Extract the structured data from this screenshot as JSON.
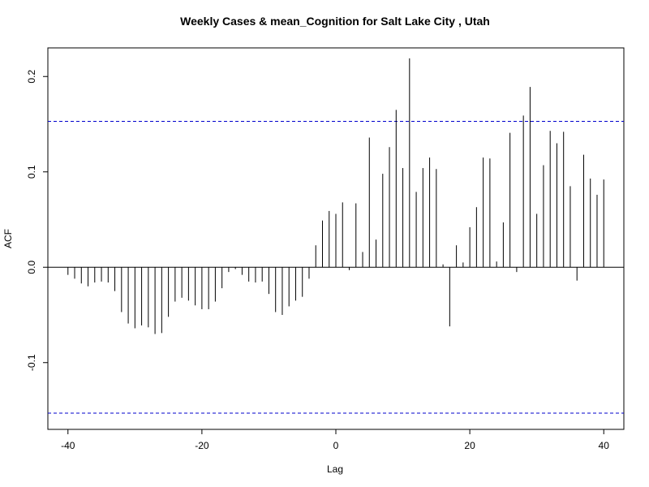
{
  "chart_data": {
    "type": "bar",
    "title": "Weekly Cases & mean_Cognition for Salt Lake City , Utah",
    "xlabel": "Lag",
    "ylabel": "ACF",
    "xlim": [
      -43,
      43
    ],
    "ylim": [
      -0.17,
      0.23
    ],
    "x_ticks": [
      -40,
      -20,
      0,
      20,
      40
    ],
    "x_tick_labels": [
      "-40",
      "-20",
      "0",
      "20",
      "40"
    ],
    "y_ticks": [
      -0.1,
      0.0,
      0.1,
      0.2
    ],
    "y_tick_labels": [
      "-0.1",
      "0.0",
      "0.1",
      "0.2"
    ],
    "confidence_bound": 0.153,
    "zero_line": true,
    "grid": false,
    "colors": {
      "bars": "#000000",
      "confidence_lines": "#0000cc",
      "frame": "#000000"
    },
    "lags": [
      -40,
      -39,
      -38,
      -37,
      -36,
      -35,
      -34,
      -33,
      -32,
      -31,
      -30,
      -29,
      -28,
      -27,
      -26,
      -25,
      -24,
      -23,
      -22,
      -21,
      -20,
      -19,
      -18,
      -17,
      -16,
      -15,
      -14,
      -13,
      -12,
      -11,
      -10,
      -9,
      -8,
      -7,
      -6,
      -5,
      -4,
      -3,
      -2,
      -1,
      0,
      1,
      2,
      3,
      4,
      5,
      6,
      7,
      8,
      9,
      10,
      11,
      12,
      13,
      14,
      15,
      16,
      17,
      18,
      19,
      20,
      21,
      22,
      23,
      24,
      25,
      26,
      27,
      28,
      29,
      30,
      31,
      32,
      33,
      34,
      35,
      36,
      37,
      38,
      39,
      40
    ],
    "values": [
      -0.008,
      -0.012,
      -0.017,
      -0.02,
      -0.016,
      -0.015,
      -0.016,
      -0.025,
      -0.047,
      -0.059,
      -0.064,
      -0.061,
      -0.063,
      -0.07,
      -0.069,
      -0.052,
      -0.036,
      -0.032,
      -0.035,
      -0.04,
      -0.044,
      -0.044,
      -0.036,
      -0.022,
      -0.005,
      -0.002,
      -0.008,
      -0.015,
      -0.016,
      -0.015,
      -0.028,
      -0.047,
      -0.05,
      -0.041,
      -0.035,
      -0.031,
      -0.012,
      0.023,
      0.049,
      0.059,
      0.056,
      0.068,
      -0.003,
      0.067,
      0.016,
      0.136,
      0.029,
      0.098,
      0.126,
      0.165,
      0.104,
      0.219,
      0.079,
      0.104,
      0.115,
      0.103,
      0.003,
      -0.062,
      0.023,
      0.005,
      0.042,
      0.063,
      0.115,
      0.114,
      0.006,
      0.047,
      0.141,
      -0.005,
      0.159,
      0.189,
      0.056,
      0.107,
      0.143,
      0.13,
      0.142,
      0.085,
      -0.014,
      0.118,
      0.093,
      0.076,
      0.092
    ]
  }
}
